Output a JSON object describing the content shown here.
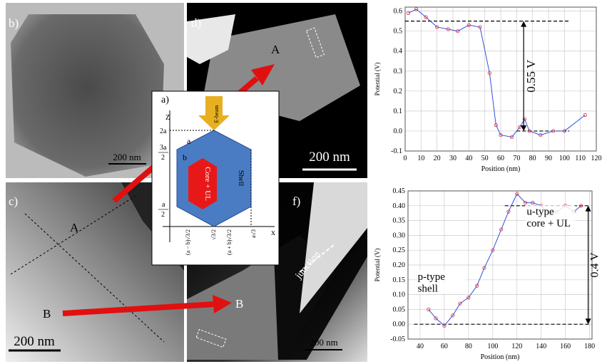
{
  "panels": {
    "b": {
      "label": "b)",
      "scale_bar": "200 nm"
    },
    "d": {
      "label": "d)",
      "marker": "A",
      "scale_bar": "200 nm"
    },
    "c": {
      "label": "c)",
      "marker_a": "A",
      "marker_b": "B",
      "scale_bar": "200 nm"
    },
    "f": {
      "label": "f)",
      "marker": "B",
      "junction": "junction",
      "scale_bar": "200 nm"
    },
    "a": {
      "label": "a)",
      "z_axis": "Z",
      "x_axis": "x",
      "beam": "E-beam",
      "side_a": "a",
      "side_b": "b",
      "core": "Core + UL",
      "shell": "Shell",
      "z_ticks": [
        {
          "num": "2a"
        },
        {
          "num": "3a",
          "den": "2"
        },
        {
          "num": "a",
          "den": "2"
        }
      ],
      "x_ticks": [
        "(a − b)√3/2",
        "√3/2",
        "(a + b)√3/2",
        "a√3"
      ]
    }
  },
  "chart_data": [
    {
      "type": "line",
      "x_label": "Position (nm)",
      "y_label": "Potential (V)",
      "x": [
        2,
        7,
        13,
        20,
        27,
        33,
        40,
        47,
        53,
        57,
        60,
        67,
        72,
        75,
        78,
        85,
        93,
        100,
        113
      ],
      "series": [
        {
          "values": [
            0.59,
            0.61,
            0.57,
            0.52,
            0.51,
            0.5,
            0.53,
            0.52,
            0.29,
            0.03,
            -0.02,
            -0.03,
            0.02,
            0.06,
            0.0,
            -0.02,
            0.0,
            0.0,
            0.08
          ],
          "line_color": "#3050e0",
          "marker_color": "#e03030"
        }
      ],
      "xlim": [
        0,
        120
      ],
      "xticks": [
        0,
        10,
        20,
        30,
        40,
        50,
        60,
        70,
        80,
        90,
        100,
        110,
        120
      ],
      "ylim": [
        -0.1,
        0.62
      ],
      "yticks": [
        -0.1,
        {
          "value": 0,
          "label": "0.0"
        },
        0.1,
        0.2,
        0.3,
        0.4,
        0.5,
        0.6
      ],
      "grid": true,
      "reference_lines": [
        {
          "y": 0.55,
          "x": [
            0,
            103
          ]
        },
        {
          "y": 0,
          "x": [
            70,
            103
          ]
        }
      ],
      "annotations": [
        "0.55 V"
      ]
    },
    {
      "type": "line",
      "x_label": "Position (nm)",
      "y_label": "Potential (V)",
      "x": [
        47,
        53,
        60,
        67,
        73,
        80,
        87,
        93,
        100,
        107,
        113,
        120,
        127,
        133,
        140,
        147,
        153,
        160,
        167,
        173
      ],
      "series": [
        {
          "values": [
            0.05,
            0.02,
            -0.005,
            0.03,
            0.07,
            0.09,
            0.13,
            0.19,
            0.25,
            0.32,
            0.38,
            0.44,
            0.41,
            0.41,
            0.4,
            0.37,
            0.38,
            0.4,
            0.38,
            0.4
          ],
          "line_color": "#3050e0",
          "marker_color": "#e03030"
        }
      ],
      "xlim": [
        30,
        182
      ],
      "xticks": [
        40,
        60,
        80,
        100,
        120,
        140,
        160,
        180
      ],
      "ylim": [
        -0.05,
        0.45
      ],
      "yticks": [
        -0.05,
        {
          "value": 0,
          "label": "0.00"
        },
        0.05,
        {
          "value": 0.1,
          "label": "0.10"
        },
        0.15,
        {
          "value": 0.2,
          "label": "0.20"
        },
        0.25,
        {
          "value": 0.3,
          "label": "0.30"
        },
        0.35,
        {
          "value": 0.4,
          "label": "0.40"
        },
        0.45
      ],
      "grid": true,
      "reference_lines": [
        {
          "y": 0.4,
          "x": [
            110,
            180
          ]
        },
        {
          "y": 0,
          "x": [
            35,
            180
          ]
        }
      ],
      "annotations": [
        "0.4 V",
        "u-type",
        "core + UL",
        "p-type",
        "shell"
      ]
    }
  ]
}
